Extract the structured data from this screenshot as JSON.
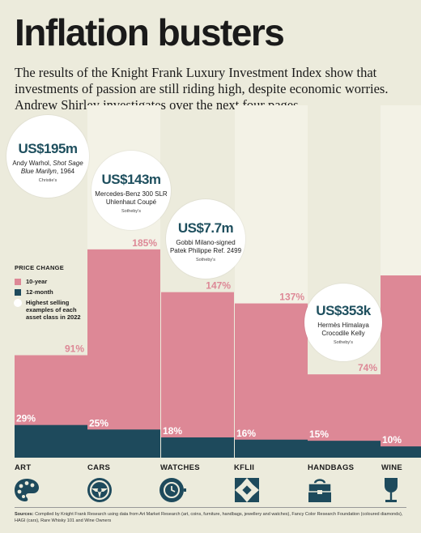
{
  "title": "Inflation busters",
  "intro": "The results of the Knight Frank Luxury Investment Index show that investments of passion are still riding high, despite economic worries. Andrew Shirley investigates over the next four pages",
  "colors": {
    "ten_year": "#dd8896",
    "twelve_month": "#1e4a5c",
    "background": "#ecebdc",
    "band": "#f3f2e6",
    "price": "#1e4f5e"
  },
  "legend": {
    "heading": "PRICE CHANGE",
    "ten_year": "10-year",
    "twelve_month": "12-month",
    "highlight": "Highest selling examples of each asset class in 2022"
  },
  "highlights": [
    {
      "price": "US$195m",
      "line1": "Andy Warhol, ",
      "line1_italic": "Shot Sage",
      "line2_italic": "Blue Marilyn",
      "line2": ", 1964",
      "source": "Christie's"
    },
    {
      "price": "US$143m",
      "line1": "Mercedes-Benz 300 SLR",
      "line2": "Uhlenhaut Coupé",
      "source": "Sotheby's"
    },
    {
      "price": "US$7.7m",
      "line1": "Gobbi Milano-signed",
      "line2": "Patek Philippe Ref. 2499",
      "source": "Sotheby's"
    },
    {
      "price": "US$353k",
      "line1": "Hermès Himalaya",
      "line2": "Crocodile Kelly",
      "source": "Sotheby's"
    }
  ],
  "chart_data": {
    "type": "bar",
    "categories": [
      "ART",
      "CARS",
      "WATCHES",
      "KFLII",
      "HANDBAGS",
      "WINE"
    ],
    "series": [
      {
        "name": "10-year",
        "values": [
          91,
          185,
          147,
          137,
          74,
          null
        ],
        "labels": [
          "91%",
          "185%",
          "147%",
          "137%",
          "74%",
          ""
        ]
      },
      {
        "name": "12-month",
        "values": [
          29,
          25,
          18,
          16,
          15,
          10
        ],
        "labels": [
          "29%",
          "25%",
          "18%",
          "16%",
          "15%",
          "10%"
        ]
      }
    ]
  },
  "sources": {
    "label": "Sources:",
    "text": "Compiled by Knight Frank Research using data from Art Market Research (art, coins, furniture, handbags, jewellery and watches), Fancy Color Research Foundation (coloured diamonds), HAGI (cars), Rare Whisky 101 and Wine Owners"
  }
}
